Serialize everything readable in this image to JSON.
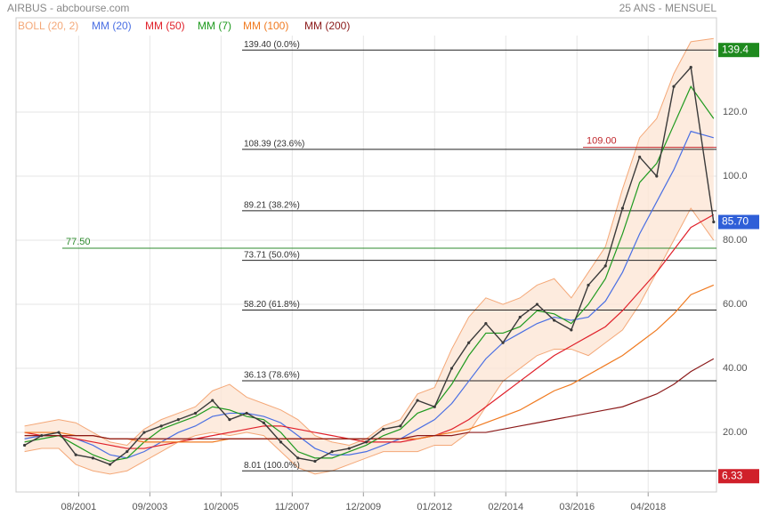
{
  "chart_data": {
    "type": "line",
    "title": "AIRBUS - abcbourse.com",
    "subtitle": "25 ANS - MENSUEL",
    "x": [
      "01/2000",
      "07/2000",
      "01/2001",
      "07/2001",
      "01/2002",
      "07/2002",
      "01/2003",
      "07/2003",
      "01/2004",
      "07/2004",
      "01/2005",
      "07/2005",
      "01/2006",
      "07/2006",
      "01/2007",
      "07/2007",
      "01/2008",
      "07/2008",
      "01/2009",
      "07/2009",
      "01/2010",
      "07/2010",
      "01/2011",
      "07/2011",
      "01/2012",
      "07/2012",
      "01/2013",
      "07/2013",
      "01/2014",
      "07/2014",
      "01/2015",
      "07/2015",
      "01/2016",
      "07/2016",
      "01/2017",
      "07/2017",
      "01/2018",
      "07/2018",
      "01/2019",
      "07/2019",
      "03/2020"
    ],
    "xlim": [
      "10/1999",
      "04/2020"
    ],
    "xticks": [
      "08/2001",
      "09/2003",
      "10/2005",
      "11/2007",
      "12/2009",
      "01/2012",
      "02/2014",
      "03/2016",
      "04/2018"
    ],
    "ylim": [
      1.4,
      143.9
    ],
    "yticks": [
      {
        "value": 20,
        "label": "20.00"
      },
      {
        "value": 40,
        "label": "40.00"
      },
      {
        "value": 60,
        "label": "60.00"
      },
      {
        "value": 80,
        "label": "80.00"
      },
      {
        "value": 100,
        "label": "100.0"
      },
      {
        "value": 120,
        "label": "120.0"
      }
    ],
    "grid": true,
    "price": {
      "color": "#3a3a3a",
      "values": [
        16,
        19,
        20,
        13,
        12,
        10,
        14,
        20,
        22,
        24,
        26,
        30,
        24,
        26,
        23,
        17,
        12,
        11,
        14,
        15,
        17,
        21,
        22,
        30,
        28,
        40,
        48,
        54,
        48,
        56,
        60,
        55,
        52,
        66,
        72,
        90,
        106,
        100,
        128,
        134,
        85.7
      ]
    },
    "series": [
      {
        "name": "BOLL (20, 2)",
        "color": "#f4a878",
        "fill": "#fde6d6",
        "upper": [
          22,
          23,
          24,
          23,
          20,
          17,
          16,
          21,
          24,
          26,
          28,
          33,
          35,
          31,
          29,
          27,
          24,
          19,
          17,
          16,
          18,
          22,
          24,
          32,
          34,
          46,
          56,
          62,
          60,
          62,
          66,
          68,
          62,
          70,
          78,
          96,
          112,
          118,
          132,
          142,
          143
        ],
        "lower": [
          14,
          15,
          15,
          10,
          8,
          7,
          8,
          11,
          14,
          17,
          19,
          20,
          19,
          20,
          19,
          14,
          9,
          7,
          8,
          10,
          12,
          14,
          14,
          14,
          16,
          16,
          20,
          28,
          36,
          40,
          44,
          46,
          46,
          44,
          48,
          52,
          60,
          70,
          80,
          90,
          80
        ]
      },
      {
        "name": "MM (20)",
        "color": "#4a6fe3",
        "values": [
          18,
          19,
          19,
          18,
          16,
          13,
          12,
          14,
          17,
          20,
          22,
          25,
          26,
          26,
          25,
          23,
          19,
          15,
          13,
          13,
          14,
          16,
          18,
          21,
          24,
          29,
          36,
          43,
          48,
          51,
          54,
          56,
          55,
          56,
          61,
          70,
          82,
          92,
          102,
          114,
          112
        ]
      },
      {
        "name": "MM (50)",
        "color": "#e0202a",
        "values": [
          20,
          19,
          19,
          18,
          17,
          16,
          15,
          15,
          16,
          17,
          18,
          19,
          20,
          21,
          22,
          22,
          21,
          20,
          19,
          18,
          17,
          17,
          17,
          18,
          19,
          21,
          24,
          28,
          32,
          36,
          40,
          44,
          47,
          50,
          53,
          58,
          64,
          70,
          77,
          84,
          88
        ]
      },
      {
        "name": "MM (7)",
        "color": "#1f9a1f",
        "values": [
          17,
          18,
          19,
          16,
          13,
          11,
          12,
          17,
          21,
          23,
          25,
          28,
          27,
          25,
          24,
          20,
          14,
          12,
          12,
          14,
          16,
          19,
          21,
          26,
          28,
          35,
          44,
          51,
          51,
          53,
          58,
          57,
          54,
          60,
          68,
          82,
          98,
          104,
          116,
          128,
          118
        ]
      },
      {
        "name": "MM (100)",
        "color": "#f07a20",
        "values": [
          20,
          20,
          20,
          19,
          19,
          18,
          18,
          17,
          17,
          17,
          17,
          17,
          18,
          18,
          18,
          18,
          18,
          18,
          18,
          18,
          18,
          18,
          18,
          18,
          19,
          20,
          21,
          23,
          25,
          27,
          30,
          33,
          35,
          38,
          41,
          44,
          48,
          52,
          57,
          63,
          66
        ]
      },
      {
        "name": "MM (200)",
        "color": "#8b1a1a",
        "values": [
          19,
          19,
          19,
          19,
          19,
          18,
          18,
          18,
          18,
          18,
          18,
          18,
          18,
          18,
          18,
          18,
          18,
          18,
          18,
          18,
          18,
          18,
          18,
          19,
          19,
          19,
          20,
          20,
          21,
          22,
          23,
          24,
          25,
          26,
          27,
          28,
          30,
          32,
          35,
          39,
          43
        ]
      }
    ],
    "fibonacci": [
      {
        "value": 139.4,
        "label": "139.40  (0.0%)"
      },
      {
        "value": 108.39,
        "label": "108.39  (23.6%)"
      },
      {
        "value": 89.21,
        "label": "89.21  (38.2%)"
      },
      {
        "value": 73.71,
        "label": "73.71  (50.0%)"
      },
      {
        "value": 58.2,
        "label": "58.20  (61.8%)"
      },
      {
        "value": 36.13,
        "label": "36.13  (78.6%)"
      },
      {
        "value": 8.01,
        "label": "8.01  (100.0%)"
      }
    ],
    "levels": [
      {
        "value": 77.5,
        "label": "77.50",
        "color": "#2e8b2e"
      },
      {
        "value": 109,
        "label": "109.00",
        "color": "#c0262b"
      }
    ],
    "price_tags": [
      {
        "value": 139.4,
        "label": "139.4",
        "color": "#1e8a1e"
      },
      {
        "value": 85.7,
        "label": "85.70",
        "color": "#2f5fd8"
      },
      {
        "value": 6.33,
        "label": "6.33",
        "color": "#d0202a"
      }
    ]
  }
}
